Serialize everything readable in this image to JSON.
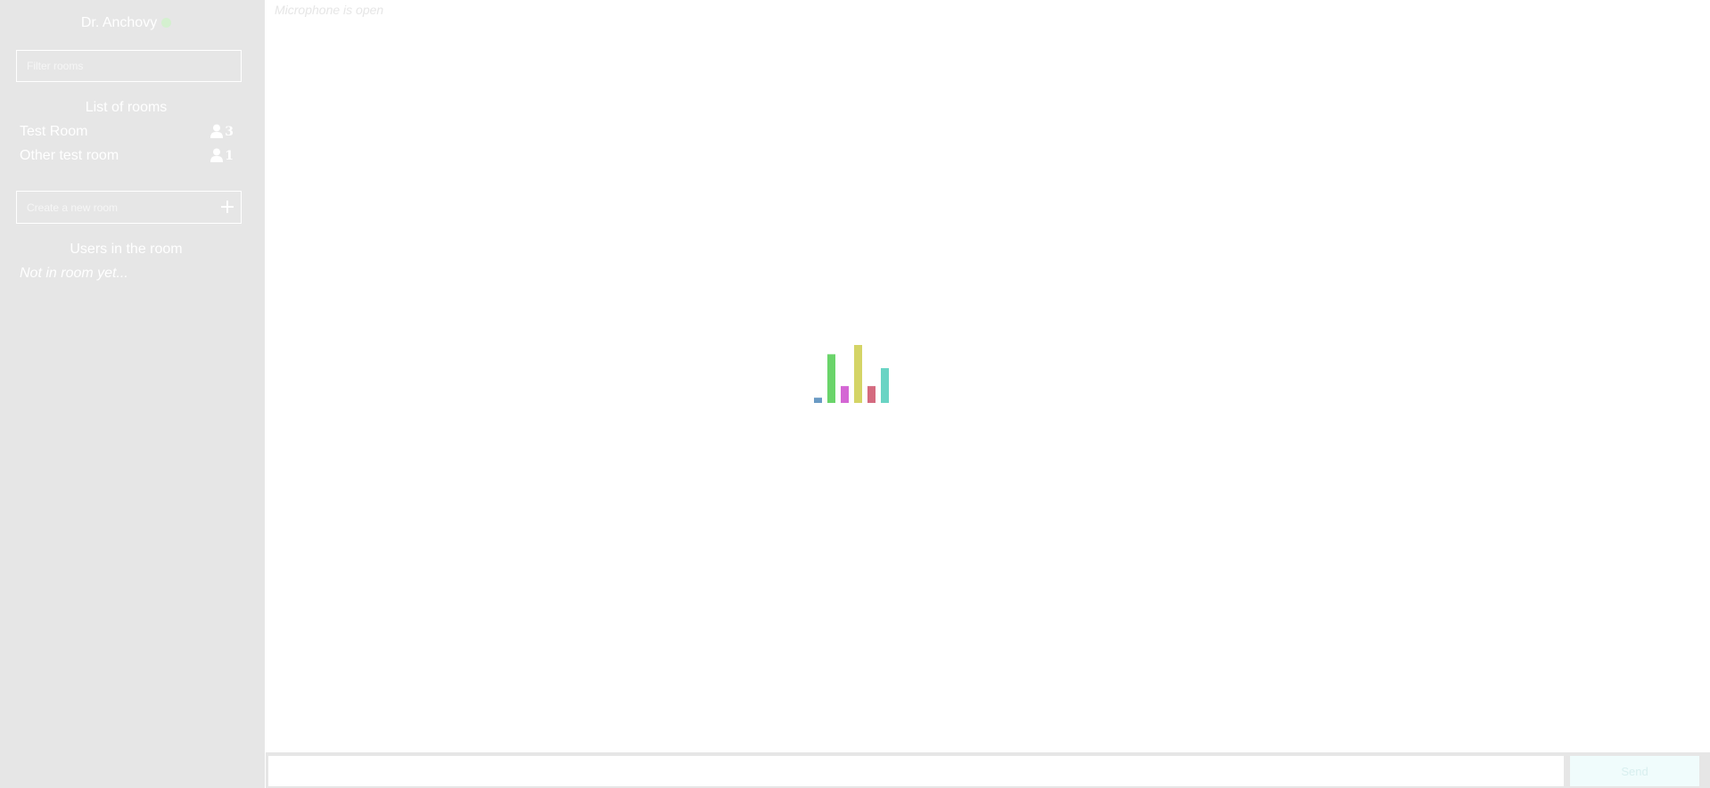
{
  "sidebar": {
    "username": "Dr. Anchovy",
    "status_color": "#d4f0cf",
    "filter_placeholder": "Filter rooms",
    "rooms_heading": "List of rooms",
    "rooms": [
      {
        "name": "Test Room",
        "user_count": "3",
        "icon": "user-icon"
      },
      {
        "name": "Other test room",
        "user_count": "1",
        "icon": "user-icon"
      }
    ],
    "create_placeholder": "Create a new room",
    "create_icon": "plus-icon",
    "users_heading": "Users in the room",
    "users_empty_text": "Not in room yet..."
  },
  "main": {
    "mic_status": "Microphone is open",
    "equalizer": {
      "bar_levels": [
        0.09,
        0.84,
        0.29,
        1.0,
        0.29,
        0.6
      ],
      "bar_colors": [
        "#6a9ac4",
        "#6ad46a",
        "#d466d4",
        "#d4d466",
        "#d46a7f",
        "#6ad4c4"
      ]
    }
  },
  "bottom": {
    "message_value": "",
    "send_label": "Send"
  },
  "colors": {
    "sidebar_bg": "#e6e6e6",
    "main_bg": "#ffffff",
    "send_bg": "#f0fcfc"
  }
}
